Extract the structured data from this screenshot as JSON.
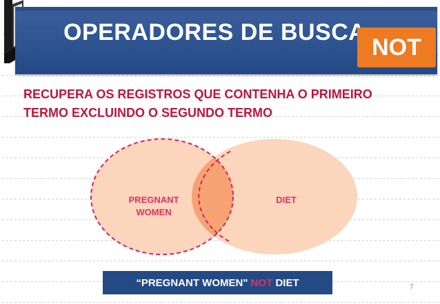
{
  "slide": {
    "title": "OPERADORES DE BUSCA",
    "badge": "NOT",
    "description_lines": [
      "RECUPERA OS REGISTROS QUE CONTENHA O PRIMEIRO",
      "TERMO EXCLUINDO O SEGUNDO TERMO"
    ],
    "venn": {
      "left_label_lines": [
        "PREGNANT",
        "WOMEN"
      ],
      "right_label": "DIET",
      "left_color": "#fcd5bd",
      "right_color": "#fcd5bd",
      "overlap_color": "#f7a273",
      "left_border_color": "#d6245a"
    },
    "query": {
      "before": "“PREGNANT WOMEN\"",
      "operator": "NOT",
      "after": "DIET"
    },
    "page_number": "7",
    "colors": {
      "banner": "#244a86",
      "badge": "#ee7a22",
      "accent_text": "#c0143c",
      "operator_highlight": "#e2305f"
    }
  }
}
